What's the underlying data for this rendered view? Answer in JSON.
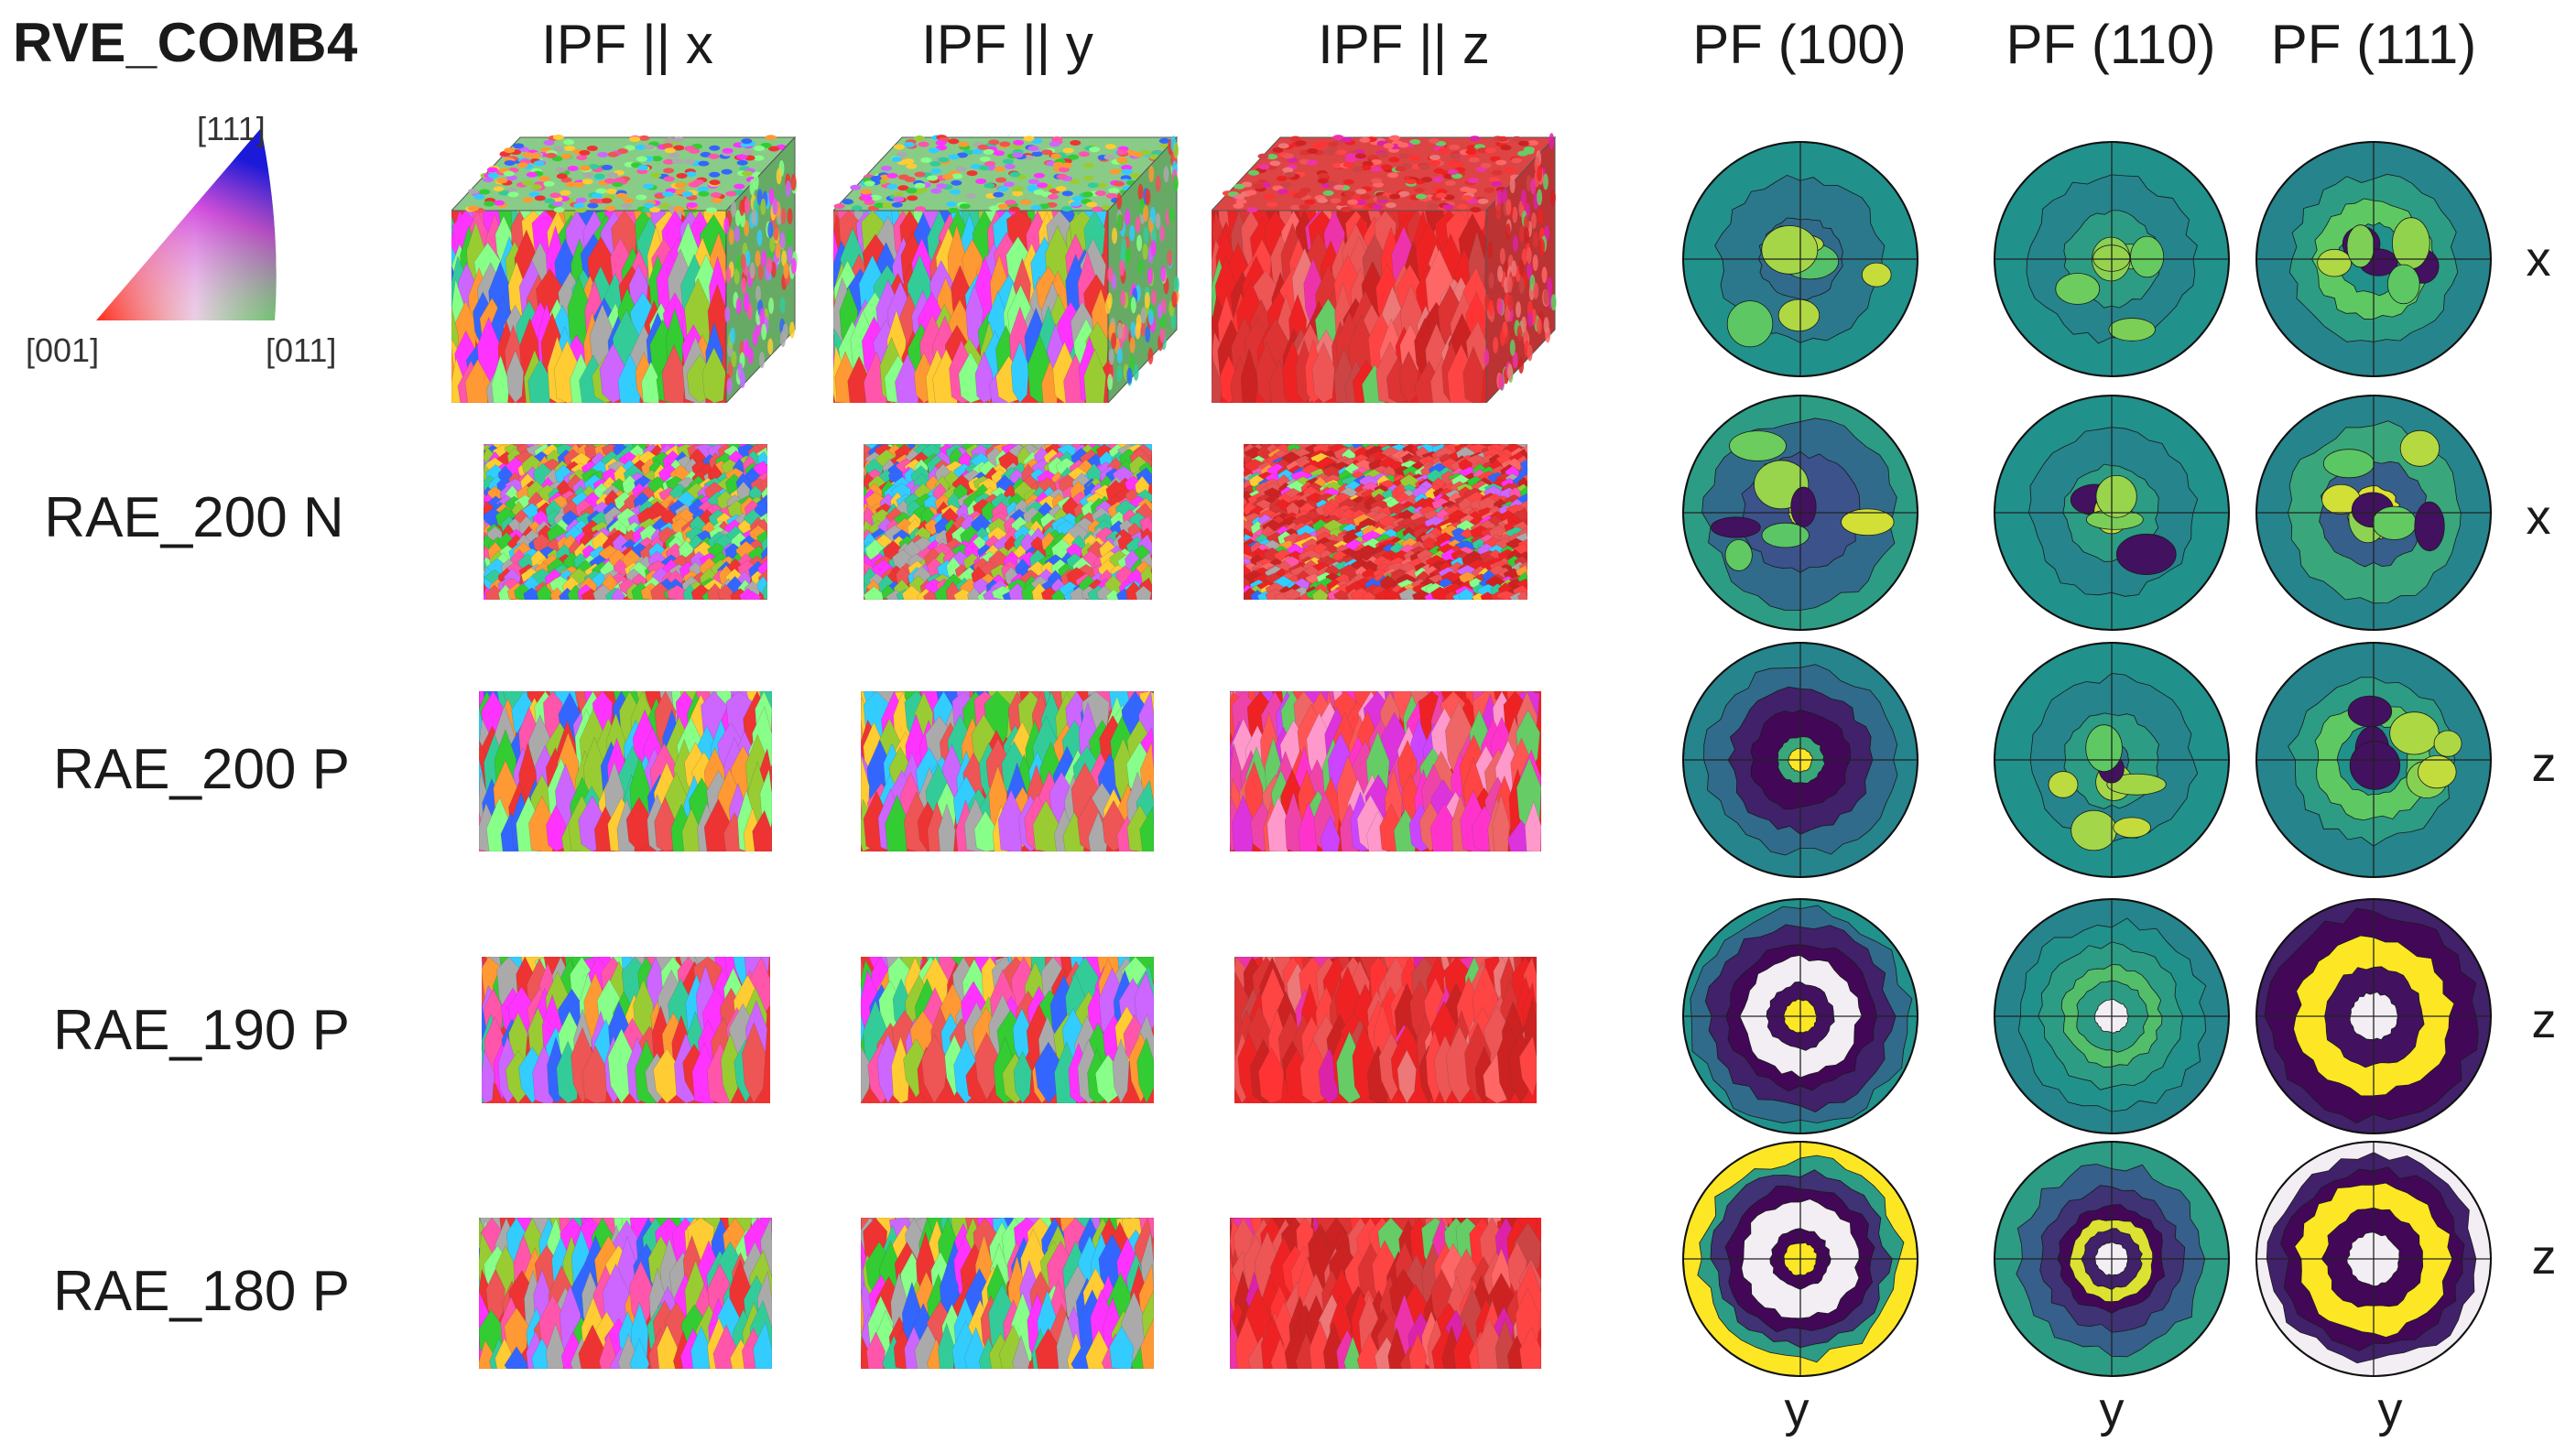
{
  "figure": {
    "title": "RVE_COMB4",
    "ipf_key": {
      "top": "[111]",
      "left": "[001]",
      "right": "[011]"
    },
    "ipf_columns": [
      "IPF || x",
      "IPF || y",
      "IPF || z"
    ],
    "pf_columns": [
      "PF (100)",
      "PF (110)",
      "PF (111)"
    ],
    "rows": [
      {
        "label": "",
        "direction": "x",
        "ipf_style": [
          "rve-mixed",
          "rve-mixed",
          "rve-red"
        ],
        "pf_style": [
          "weak-center",
          "weak",
          "weak-ring"
        ]
      },
      {
        "label": "RAE_200 N",
        "direction": "x",
        "ipf_style": [
          "equiaxed",
          "equiaxed",
          "layered"
        ],
        "pf_style": [
          "asym",
          "asym-weak",
          "asym-ring"
        ]
      },
      {
        "label": "RAE_200 P",
        "direction": "z",
        "ipf_style": [
          "columnar",
          "columnar",
          "columnar-pink"
        ],
        "pf_style": [
          "center",
          "weak",
          "weak-ring"
        ]
      },
      {
        "label": "RAE_190 P",
        "direction": "z",
        "ipf_style": [
          "columnar",
          "columnar",
          "columnar-red"
        ],
        "pf_style": [
          "strong-center",
          "ring-mid",
          "strong-ring"
        ]
      },
      {
        "label": "RAE_180 P",
        "direction": "z",
        "ipf_style": [
          "columnar",
          "columnar",
          "columnar-red"
        ],
        "pf_style": [
          "strong-center-yellow",
          "ring-mid2",
          "strong-ring2"
        ]
      }
    ],
    "bottom_labels": [
      "y",
      "y",
      "y"
    ]
  }
}
